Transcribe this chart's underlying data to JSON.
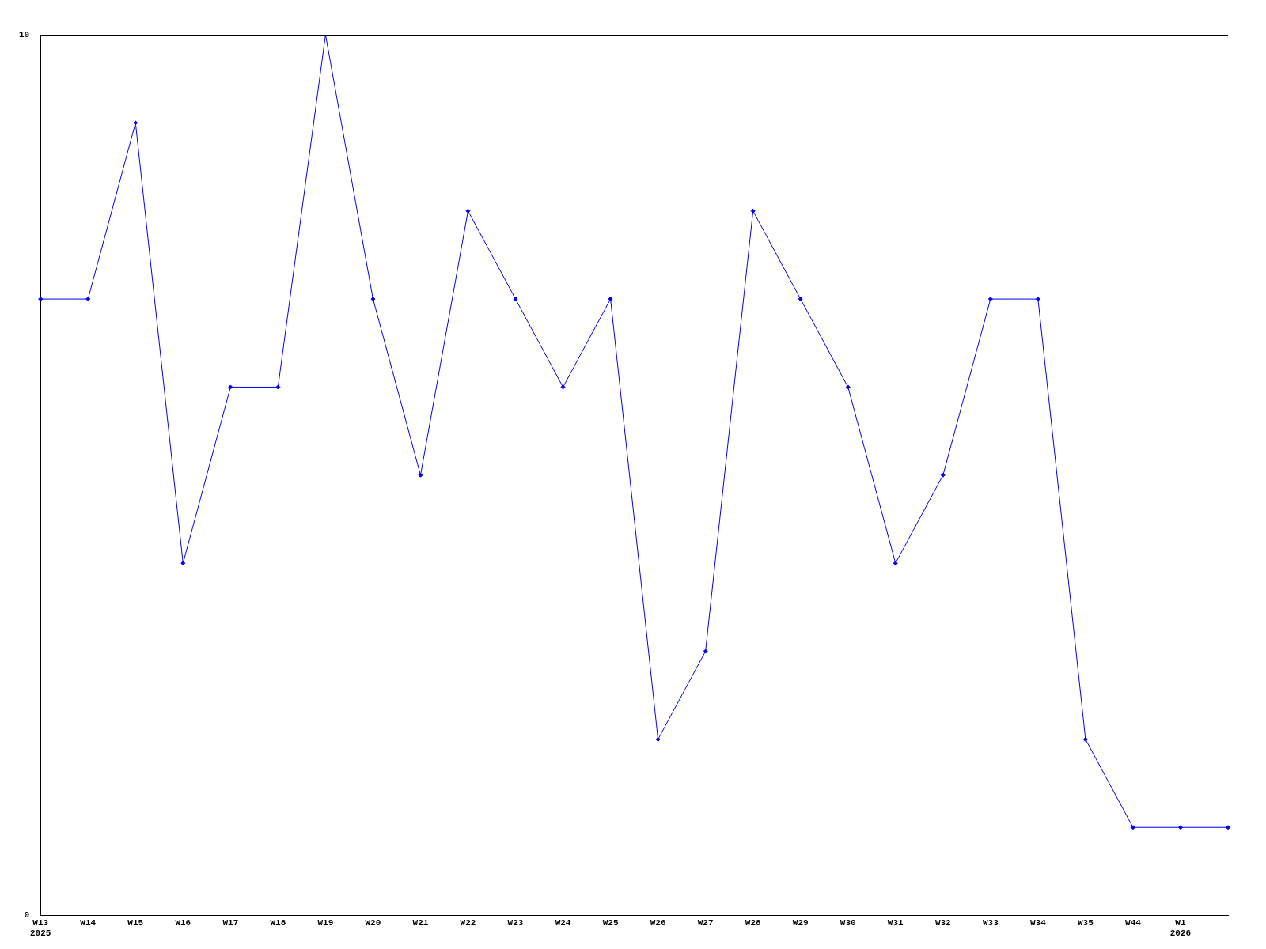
{
  "chart_data": {
    "type": "line",
    "categories": [
      "W13\n2025",
      "W14",
      "W15",
      "W16",
      "W17",
      "W18",
      "W19",
      "W20",
      "W21",
      "W22",
      "W23",
      "W24",
      "W25",
      "W26",
      "W27",
      "W28",
      "W29",
      "W30",
      "W31",
      "W32",
      "W33",
      "W34",
      "W35",
      "W44",
      "W1\n2026",
      null
    ],
    "series": [
      {
        "color": "#0000ff",
        "values": [
          7,
          7,
          9,
          4,
          6,
          6,
          10,
          7,
          5,
          8,
          7,
          6,
          7,
          2,
          3,
          8,
          7,
          6,
          4,
          5,
          7,
          7,
          2,
          1,
          1,
          1
        ]
      }
    ],
    "ylim": [
      0,
      10
    ],
    "yticks": [
      0,
      10
    ],
    "grid": false,
    "legend": false,
    "marker": "diamond",
    "line_style": "solid"
  }
}
